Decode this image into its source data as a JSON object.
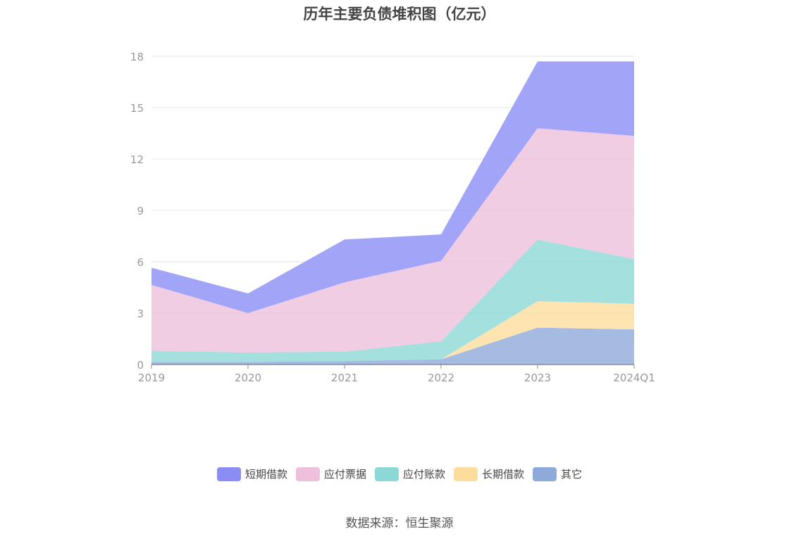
{
  "chart_data": {
    "type": "area",
    "stacked": true,
    "title": "历年主要负债堆积图（亿元）",
    "categories": [
      "2019",
      "2020",
      "2021",
      "2022",
      "2023",
      "2024Q1"
    ],
    "ylim": [
      0,
      18
    ],
    "yticks": [
      0,
      3,
      6,
      9,
      12,
      15,
      18
    ],
    "grid": true,
    "legend_position": "bottom",
    "series": [
      {
        "name": "其它",
        "color": "#8eaadb",
        "values": [
          0.15,
          0.15,
          0.2,
          0.3,
          2.15,
          2.05
        ]
      },
      {
        "name": "长期借款",
        "color": "#fddd9e",
        "values": [
          0.0,
          0.0,
          0.0,
          0.0,
          1.55,
          1.5
        ]
      },
      {
        "name": "应付账款",
        "color": "#8cd8d6",
        "values": [
          0.65,
          0.55,
          0.55,
          1.05,
          3.6,
          2.6
        ]
      },
      {
        "name": "应付票据",
        "color": "#eec0dc",
        "values": [
          3.85,
          2.3,
          4.05,
          4.7,
          6.5,
          7.2
        ]
      },
      {
        "name": "短期借款",
        "color": "#8b8df5",
        "values": [
          1.0,
          1.15,
          2.5,
          1.55,
          3.9,
          4.35
        ]
      }
    ],
    "legend_order": [
      "短期借款",
      "应付票据",
      "应付账款",
      "长期借款",
      "其它"
    ]
  },
  "footer": {
    "source": "数据来源：恒生聚源"
  }
}
